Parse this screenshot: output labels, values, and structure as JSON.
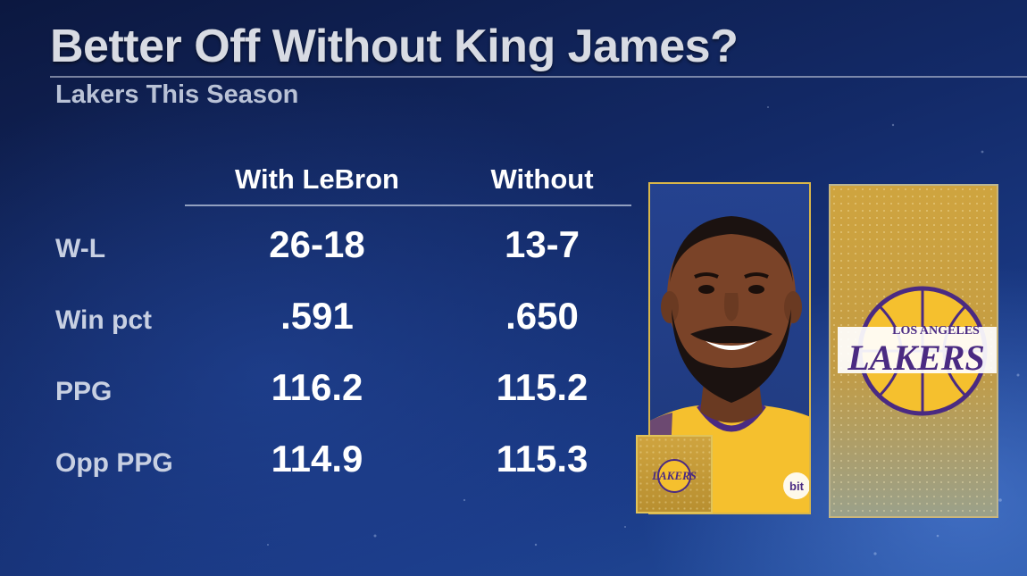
{
  "title": "Better Off Without King James?",
  "subtitle": "Lakers This Season",
  "columns": [
    "With LeBron",
    "Without"
  ],
  "rows": [
    {
      "label": "W-L",
      "with": "26-18",
      "without": "13-7"
    },
    {
      "label": "Win pct",
      "with": ".591",
      "without": ".650"
    },
    {
      "label": "PPG",
      "with": "116.2",
      "without": "115.2"
    },
    {
      "label": "Opp PPG",
      "with": "114.9",
      "without": "115.3"
    }
  ],
  "logo": {
    "top_text": "LOS ANGELES",
    "main_text": "LAKERS"
  },
  "mini_logo_text": "LAKERS",
  "jersey_patch_text": "bit",
  "colors": {
    "gold": "#d9b64a",
    "purple": "#4a2a82",
    "laker_yellow": "#f5c02e"
  },
  "icons": [
    "player-headshot",
    "lakers-logo-icon",
    "mini-lakers-logo-icon"
  ]
}
